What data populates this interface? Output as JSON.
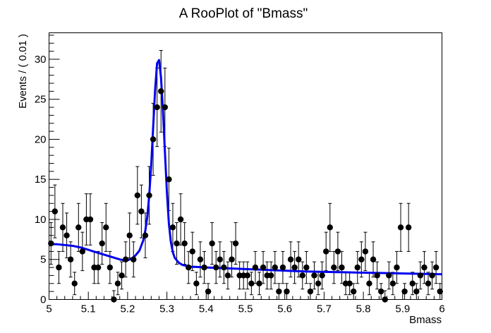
{
  "chart_data": {
    "type": "scatter",
    "title": "A RooPlot of \"Bmass\"",
    "xlabel": "Bmass",
    "ylabel": "Events / ( 0.01 )",
    "xlim": [
      5,
      6
    ],
    "ylim": [
      0,
      33.3
    ],
    "grid": false,
    "legend": "none",
    "x_ticks": [
      5,
      5.1,
      5.2,
      5.3,
      5.4,
      5.5,
      5.6,
      5.7,
      5.8,
      5.9,
      6
    ],
    "x_tick_labels": [
      "5",
      "5.1",
      "5.2",
      "5.3",
      "5.4",
      "5.5",
      "5.6",
      "5.7",
      "5.8",
      "5.9",
      "6"
    ],
    "y_ticks": [
      0,
      5,
      10,
      15,
      20,
      25,
      30
    ],
    "y_tick_labels": [
      "0",
      "5",
      "10",
      "15",
      "20",
      "25",
      "30"
    ],
    "series": [
      {
        "kind": "points-with-errors",
        "color": "#000000",
        "x": [
          5.005,
          5.015,
          5.025,
          5.035,
          5.045,
          5.055,
          5.065,
          5.075,
          5.085,
          5.095,
          5.105,
          5.115,
          5.125,
          5.135,
          5.145,
          5.155,
          5.165,
          5.175,
          5.185,
          5.195,
          5.205,
          5.215,
          5.225,
          5.235,
          5.245,
          5.255,
          5.265,
          5.275,
          5.285,
          5.295,
          5.305,
          5.315,
          5.325,
          5.335,
          5.345,
          5.355,
          5.365,
          5.375,
          5.385,
          5.395,
          5.405,
          5.415,
          5.425,
          5.435,
          5.445,
          5.455,
          5.465,
          5.475,
          5.485,
          5.495,
          5.505,
          5.515,
          5.525,
          5.535,
          5.545,
          5.555,
          5.565,
          5.575,
          5.585,
          5.595,
          5.605,
          5.615,
          5.625,
          5.635,
          5.645,
          5.655,
          5.665,
          5.675,
          5.685,
          5.695,
          5.705,
          5.715,
          5.725,
          5.735,
          5.745,
          5.755,
          5.765,
          5.775,
          5.785,
          5.795,
          5.805,
          5.815,
          5.825,
          5.835,
          5.845,
          5.855,
          5.865,
          5.875,
          5.885,
          5.895,
          5.905,
          5.915,
          5.925,
          5.935,
          5.945,
          5.955,
          5.965,
          5.975,
          5.985,
          5.995
        ],
        "y": [
          7,
          11,
          4,
          9,
          8,
          5,
          2,
          9,
          6,
          10,
          10,
          4,
          4,
          7,
          9,
          4,
          0,
          2,
          3,
          5,
          8,
          5,
          13,
          11,
          8,
          13,
          20,
          24,
          26,
          24,
          15,
          9,
          7,
          10,
          7,
          4,
          6,
          2,
          5,
          4,
          1,
          7,
          4,
          5,
          4,
          3,
          5,
          7,
          3,
          3,
          3,
          2,
          4,
          2,
          4,
          3,
          3,
          4,
          1,
          4,
          1,
          5,
          4,
          5,
          3,
          4,
          1,
          3,
          2,
          3,
          6,
          9,
          4,
          6,
          4,
          2,
          2,
          1,
          4,
          5,
          6,
          2,
          5,
          3,
          1,
          0,
          3,
          2,
          4,
          9,
          1,
          9,
          2,
          1,
          3,
          4,
          2,
          3,
          4,
          1
        ],
        "y_err": [
          2.6,
          3.3,
          2.0,
          3.0,
          2.8,
          2.2,
          1.4,
          3.0,
          2.4,
          3.2,
          3.2,
          2.0,
          2.0,
          2.6,
          3.0,
          2.0,
          1.1,
          1.4,
          1.7,
          2.2,
          2.8,
          2.2,
          3.6,
          3.3,
          2.8,
          3.6,
          4.5,
          4.9,
          5.1,
          4.9,
          3.9,
          3.0,
          2.6,
          3.2,
          2.6,
          2.0,
          2.4,
          1.4,
          2.2,
          2.0,
          1.0,
          2.6,
          2.0,
          2.2,
          2.0,
          1.7,
          2.2,
          2.6,
          1.7,
          1.7,
          1.7,
          1.4,
          2.0,
          1.4,
          2.0,
          1.7,
          1.7,
          2.0,
          1.0,
          2.0,
          1.0,
          2.2,
          2.0,
          2.2,
          1.7,
          2.0,
          1.0,
          1.7,
          1.4,
          1.7,
          2.4,
          3.0,
          2.0,
          2.4,
          2.0,
          1.4,
          1.4,
          1.0,
          2.0,
          2.2,
          2.4,
          1.4,
          2.2,
          1.7,
          1.0,
          1.1,
          1.7,
          1.4,
          2.0,
          3.0,
          1.0,
          3.0,
          1.4,
          1.0,
          1.7,
          2.0,
          1.4,
          1.7,
          2.0,
          1.0
        ]
      },
      {
        "kind": "fit-curve",
        "color": "#0000ee",
        "x": [
          5.0,
          5.02,
          5.04,
          5.06,
          5.08,
          5.1,
          5.12,
          5.14,
          5.16,
          5.18,
          5.19,
          5.2,
          5.21,
          5.22,
          5.23,
          5.24,
          5.245,
          5.25,
          5.255,
          5.26,
          5.265,
          5.27,
          5.275,
          5.28,
          5.285,
          5.29,
          5.295,
          5.3,
          5.305,
          5.31,
          5.315,
          5.32,
          5.33,
          5.34,
          5.35,
          5.36,
          5.38,
          5.4,
          5.45,
          5.5,
          5.55,
          5.6,
          5.65,
          5.7,
          5.75,
          5.8,
          5.85,
          5.9,
          5.95,
          6.0
        ],
        "y": [
          6.9,
          6.9,
          6.8,
          6.7,
          6.5,
          6.2,
          5.9,
          5.6,
          5.3,
          5.0,
          4.9,
          4.9,
          5.1,
          5.5,
          6.1,
          7.4,
          8.6,
          10.3,
          13.0,
          16.8,
          21.5,
          26.2,
          29.5,
          29.9,
          27.7,
          23.5,
          18.4,
          13.4,
          9.5,
          7.2,
          5.9,
          5.2,
          4.6,
          4.3,
          4.2,
          4.1,
          4.05,
          4.0,
          3.9,
          3.8,
          3.7,
          3.6,
          3.5,
          3.45,
          3.4,
          3.35,
          3.3,
          3.25,
          3.2,
          3.15
        ]
      }
    ]
  }
}
